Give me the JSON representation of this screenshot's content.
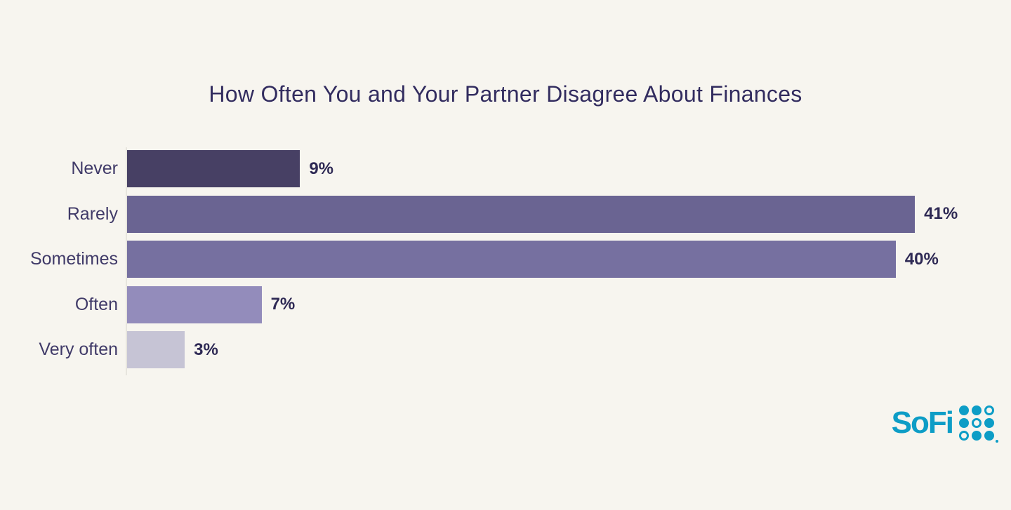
{
  "title": "How Often You and Your Partner Disagree About Finances",
  "chart_data": {
    "type": "bar",
    "orientation": "horizontal",
    "title": "How Often You and Your Partner Disagree About Finances",
    "categories": [
      "Never",
      "Rarely",
      "Sometimes",
      "Often",
      "Very often"
    ],
    "values": [
      9,
      41,
      40,
      7,
      3
    ],
    "value_labels": [
      "9%",
      "41%",
      "40%",
      "7%",
      "3%"
    ],
    "bar_colors": [
      "#474064",
      "#6a6492",
      "#7670a0",
      "#938cbb",
      "#c6c4d5"
    ],
    "xlabel": "",
    "ylabel": "",
    "xlim": [
      0,
      46
    ],
    "grid": false,
    "legend": false,
    "value_label_position": "right-of-bar"
  },
  "colors": {
    "background": "#f7f5ef",
    "title_text": "#322c5f",
    "category_label_text": "#403a68",
    "value_label_text": "#2e2954",
    "axis_line": "#e7e5de",
    "logo_teal": "#0d9dc6"
  },
  "logo": {
    "wordmark": "SoFi",
    "dot_pattern": [
      [
        "filled",
        "filled",
        "outline"
      ],
      [
        "filled",
        "outline",
        "filled"
      ],
      [
        "outline",
        "filled",
        "filled"
      ]
    ],
    "registered_mark": true
  }
}
